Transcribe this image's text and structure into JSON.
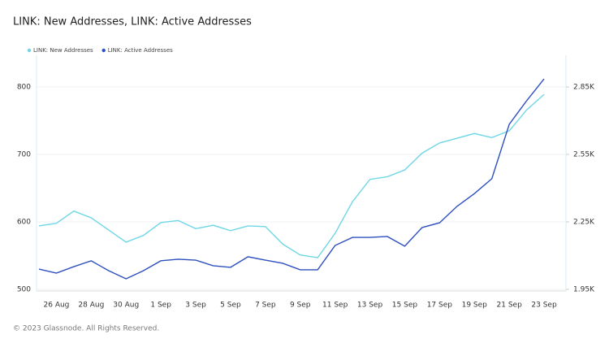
{
  "chart_data": {
    "type": "line",
    "title": "LINK: New Addresses, LINK: Active Addresses",
    "categories": [
      null,
      "26 Aug",
      null,
      "28 Aug",
      null,
      "30 Aug",
      null,
      "1 Sep",
      null,
      "3 Sep",
      null,
      "5 Sep",
      null,
      "7 Sep",
      null,
      "9 Sep",
      null,
      "11 Sep",
      null,
      "13 Sep",
      null,
      "15 Sep",
      null,
      "17 Sep",
      null,
      "19 Sep",
      null,
      "21 Sep",
      null,
      "23 Sep"
    ],
    "series": [
      {
        "name": "LINK: New Addresses",
        "color": "#6fd6e6",
        "axis": "y",
        "values": [
          594,
          598,
          616,
          606,
          588,
          570,
          580,
          599,
          602,
          590,
          595,
          587,
          594,
          593,
          567,
          551,
          547,
          583,
          630,
          663,
          667,
          677,
          702,
          717,
          724,
          731,
          725,
          735,
          766,
          789
        ]
      },
      {
        "name": "LINK: Active Addresses",
        "color": "#2d4fbf",
        "axis": "y2",
        "values": [
          2040,
          2022,
          2051,
          2077,
          2033,
          1997,
          2033,
          2077,
          2084,
          2080,
          2055,
          2048,
          2095,
          2080,
          2066,
          2037,
          2037,
          2145,
          2181,
          2181,
          2185,
          2142,
          2225,
          2246,
          2319,
          2376,
          2442,
          2684,
          2789,
          2886
        ]
      }
    ],
    "ylim": [
      500,
      847
    ],
    "yticks": [
      500,
      600,
      700,
      800
    ],
    "y2lim": [
      1950,
      2991
    ],
    "y2ticks": [
      {
        "value": 1950,
        "label": "1.95K"
      },
      {
        "value": 2250,
        "label": "2.25K"
      },
      {
        "value": 2550,
        "label": "2.55K"
      },
      {
        "value": 2850,
        "label": "2.85K"
      }
    ],
    "grid": true,
    "legend": "top-left"
  },
  "footer": "© 2023 Glassnode. All Rights Reserved."
}
